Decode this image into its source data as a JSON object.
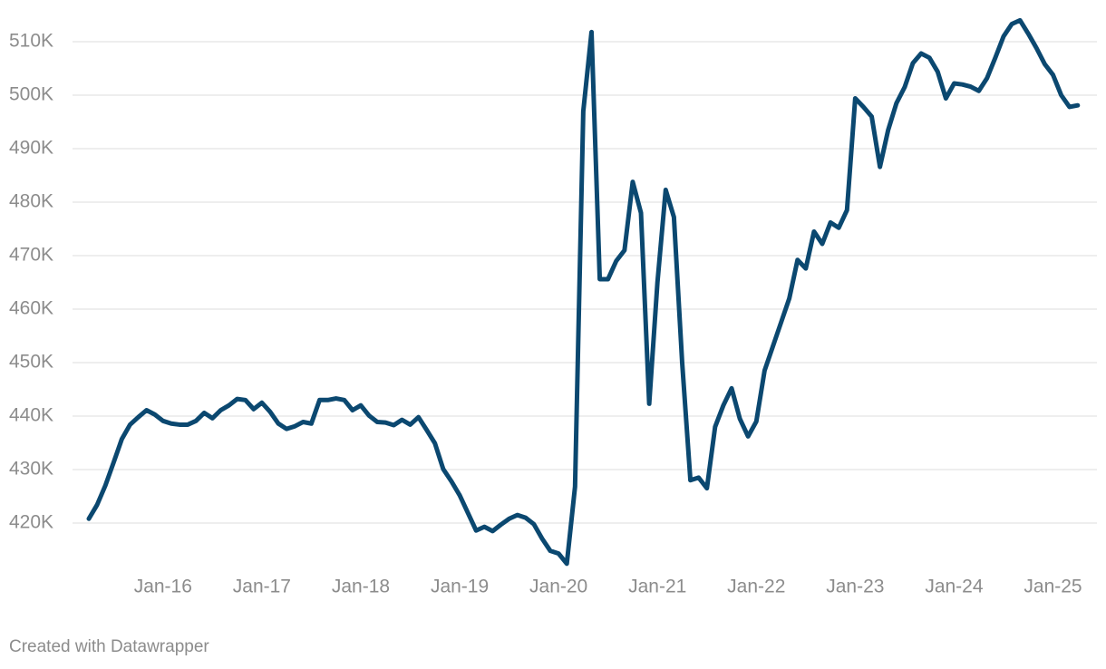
{
  "chart_data": {
    "type": "line",
    "credit": "Created with Datawrapper",
    "categories": [
      null,
      null,
      null,
      null,
      null,
      null,
      null,
      null,
      null,
      "Jan-16",
      null,
      null,
      null,
      null,
      null,
      null,
      null,
      null,
      null,
      null,
      null,
      "Jan-17",
      null,
      null,
      null,
      null,
      null,
      null,
      null,
      null,
      null,
      null,
      null,
      "Jan-18",
      null,
      null,
      null,
      null,
      null,
      null,
      null,
      null,
      null,
      null,
      null,
      "Jan-19",
      null,
      null,
      null,
      null,
      null,
      null,
      null,
      null,
      null,
      null,
      null,
      "Jan-20",
      null,
      null,
      null,
      null,
      null,
      null,
      null,
      null,
      null,
      null,
      null,
      "Jan-21",
      null,
      null,
      null,
      null,
      null,
      null,
      null,
      null,
      null,
      null,
      null,
      "Jan-22",
      null,
      null,
      null,
      null,
      null,
      null,
      null,
      null,
      null,
      null,
      null,
      "Jan-23",
      null,
      null,
      null,
      null,
      null,
      null,
      null,
      null,
      null,
      null,
      null,
      "Jan-24",
      null,
      null,
      null,
      null,
      null,
      null,
      null,
      null,
      null,
      null,
      null,
      "Jan-25",
      null,
      null,
      null
    ],
    "values": [
      420800,
      423400,
      427000,
      431300,
      435700,
      438400,
      439800,
      441100,
      440300,
      439100,
      438600,
      438400,
      438400,
      439100,
      440600,
      439600,
      441100,
      442000,
      443200,
      443000,
      441300,
      442500,
      440800,
      438600,
      437600,
      438100,
      438900,
      438600,
      443000,
      443000,
      443300,
      443000,
      441100,
      442000,
      440100,
      438900,
      438800,
      438300,
      439300,
      438400,
      439800,
      437400,
      434900,
      430100,
      427800,
      425200,
      421900,
      418600,
      419300,
      418500,
      419700,
      420800,
      421500,
      421000,
      419800,
      417100,
      414800,
      414300,
      412400,
      426800,
      497000,
      511800,
      465600,
      465600,
      469000,
      471000,
      483800,
      478000,
      442300,
      465000,
      482300,
      477200,
      450000,
      428000,
      428500,
      426500,
      438000,
      442000,
      445200,
      439500,
      436200,
      439000,
      448500,
      453000,
      457500,
      462000,
      469200,
      467600,
      474500,
      472200,
      476200,
      475200,
      478500,
      499400,
      497800,
      496000,
      486600,
      493500,
      498500,
      501500,
      506000,
      507800,
      507000,
      504400,
      499400,
      502200,
      502000,
      501600,
      500800,
      503200,
      507000,
      511000,
      513300,
      514000,
      511500,
      508800,
      505800,
      503800,
      500000,
      497800,
      498100
    ],
    "color": "#0b4870",
    "ylim": [
      410000,
      515000
    ],
    "yticks": [
      {
        "value": 420000,
        "label": "420K"
      },
      {
        "value": 430000,
        "label": "430K"
      },
      {
        "value": 440000,
        "label": "440K"
      },
      {
        "value": 450000,
        "label": "450K"
      },
      {
        "value": 460000,
        "label": "460K"
      },
      {
        "value": 470000,
        "label": "470K"
      },
      {
        "value": 480000,
        "label": "480K"
      },
      {
        "value": 490000,
        "label": "490K"
      },
      {
        "value": 500000,
        "label": "500K"
      },
      {
        "value": 510000,
        "label": "510K"
      }
    ],
    "grid": true
  }
}
